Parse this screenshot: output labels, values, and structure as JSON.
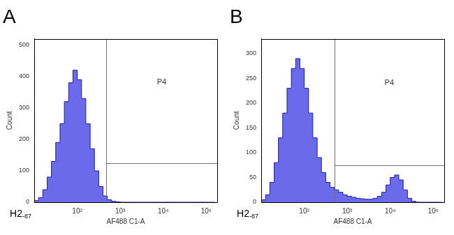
{
  "chart_data": [
    {
      "type": "histogram",
      "title": "A",
      "x_label": "AF488 C1-A",
      "y_label": "Count",
      "log": "x",
      "grid": false,
      "color": "#6a6aea",
      "bins": [
        10,
        12.6,
        15.8,
        20,
        25.1,
        31.6,
        39.8,
        50.1,
        63.1,
        79.4,
        100,
        126,
        158,
        200,
        251,
        316,
        398,
        501,
        631,
        794,
        1000,
        1260,
        1580,
        2000,
        2510,
        3160,
        3980,
        5010,
        6310,
        7940,
        10000,
        12600,
        15800,
        20000,
        25100,
        31600,
        39800,
        50100,
        63100,
        79400,
        100000,
        126000,
        158000
      ],
      "values": [
        0,
        5,
        15,
        40,
        80,
        130,
        190,
        250,
        320,
        380,
        420,
        390,
        330,
        250,
        170,
        100,
        50,
        20,
        8,
        3,
        1,
        0,
        0,
        0,
        0,
        0,
        0,
        0,
        0,
        0,
        0,
        0,
        0,
        0,
        0,
        0,
        0,
        0,
        0,
        0,
        0,
        0
      ],
      "xlim": [
        10,
        180000
      ],
      "xticks": [
        {
          "value": 100,
          "label": "10²"
        },
        {
          "value": 1000,
          "label": "10³"
        },
        {
          "value": 10000,
          "label": "10⁴"
        },
        {
          "value": 100000,
          "label": "10⁵"
        }
      ],
      "ylim": [
        0,
        520
      ],
      "yticks": [
        0,
        100,
        200,
        300,
        400,
        500
      ],
      "gate": {
        "label": "P4",
        "x": 470,
        "y": 125
      },
      "annotations": [
        {
          "text": "H2",
          "sub": "-87"
        }
      ]
    },
    {
      "type": "histogram",
      "title": "B",
      "x_label": "AF488 C1-A",
      "y_label": "Count",
      "log": "x",
      "grid": false,
      "color": "#6a6aea",
      "bins": [
        10,
        12.6,
        15.8,
        20,
        25.1,
        31.6,
        39.8,
        50.1,
        63.1,
        79.4,
        100,
        126,
        158,
        200,
        251,
        316,
        398,
        501,
        631,
        794,
        1000,
        1260,
        1580,
        2000,
        2510,
        3160,
        3980,
        5010,
        6310,
        7940,
        10000,
        12600,
        15800,
        20000,
        25100,
        31600,
        39800,
        50100,
        63100,
        79400,
        100000,
        126000,
        158000
      ],
      "values": [
        0,
        5,
        15,
        40,
        80,
        130,
        180,
        230,
        270,
        290,
        270,
        230,
        180,
        130,
        90,
        60,
        40,
        30,
        25,
        20,
        15,
        12,
        10,
        8,
        7,
        6,
        6,
        8,
        12,
        20,
        35,
        50,
        55,
        45,
        25,
        8,
        2,
        0,
        0,
        0,
        0,
        0
      ],
      "xlim": [
        10,
        180000
      ],
      "xticks": [
        {
          "value": 100,
          "label": "10²"
        },
        {
          "value": 1000,
          "label": "10³"
        },
        {
          "value": 10000,
          "label": "10⁴"
        },
        {
          "value": 100000,
          "label": "10⁵"
        }
      ],
      "ylim": [
        0,
        330
      ],
      "yticks": [
        0,
        50,
        100,
        150,
        200,
        250,
        300
      ],
      "gate": {
        "label": "P4",
        "x": 500,
        "y": 75
      },
      "annotations": [
        {
          "text": "H2",
          "sub": "-87"
        }
      ]
    }
  ]
}
